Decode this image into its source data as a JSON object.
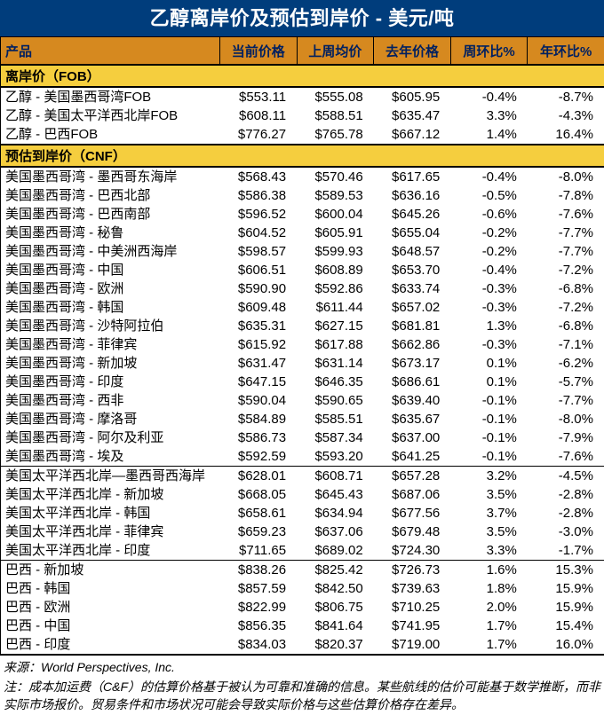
{
  "title": "乙醇离岸价及预估到岸价 - 美元/吨",
  "colors": {
    "navy_header": "#003D7C",
    "orange_column_header": "#D6891F",
    "yellow_section": "#F5CE3E",
    "column_header_text": "#002060"
  },
  "table": {
    "columns": [
      "产品",
      "当前价格",
      "上周均价",
      "去年价格",
      "周环比%",
      "年环比%"
    ],
    "sections": [
      {
        "label": "离岸价（FOB）",
        "groups": [
          {
            "rows": [
              [
                "乙醇 - 美国墨西哥湾FOB",
                "$553.11",
                "$555.08",
                "$605.95",
                "-0.4%",
                "-8.7%"
              ],
              [
                "乙醇 - 美国太平洋西北岸FOB",
                "$608.11",
                "$588.51",
                "$635.47",
                "3.3%",
                "-4.3%"
              ],
              [
                "乙醇 - 巴西FOB",
                "$776.27",
                "$765.78",
                "$667.12",
                "1.4%",
                "16.4%"
              ]
            ]
          }
        ]
      },
      {
        "label": "预估到岸价（CNF）",
        "groups": [
          {
            "rows": [
              [
                "美国墨西哥湾 - 墨西哥东海岸",
                "$568.43",
                "$570.46",
                "$617.65",
                "-0.4%",
                "-8.0%"
              ],
              [
                "美国墨西哥湾 - 巴西北部",
                "$586.38",
                "$589.53",
                "$636.16",
                "-0.5%",
                "-7.8%"
              ],
              [
                "美国墨西哥湾 - 巴西南部",
                "$596.52",
                "$600.04",
                "$645.26",
                "-0.6%",
                "-7.6%"
              ],
              [
                "美国墨西哥湾 - 秘鲁",
                "$604.52",
                "$605.91",
                "$655.04",
                "-0.2%",
                "-7.7%"
              ],
              [
                "美国墨西哥湾 - 中美洲西海岸",
                "$598.57",
                "$599.93",
                "$648.57",
                "-0.2%",
                "-7.7%"
              ],
              [
                "美国墨西哥湾 - 中国",
                "$606.51",
                "$608.89",
                "$653.70",
                "-0.4%",
                "-7.2%"
              ],
              [
                "美国墨西哥湾 - 欧洲",
                "$590.90",
                "$592.86",
                "$633.74",
                "-0.3%",
                "-6.8%"
              ],
              [
                "美国墨西哥湾 - 韩国",
                "$609.48",
                "$611.44",
                "$657.02",
                "-0.3%",
                "-7.2%"
              ],
              [
                "美国墨西哥湾 - 沙特阿拉伯",
                "$635.31",
                "$627.15",
                "$681.81",
                "1.3%",
                "-6.8%"
              ],
              [
                "美国墨西哥湾 - 菲律宾",
                "$615.92",
                "$617.88",
                "$662.86",
                "-0.3%",
                "-7.1%"
              ],
              [
                "美国墨西哥湾 - 新加坡",
                "$631.47",
                "$631.14",
                "$673.17",
                "0.1%",
                "-6.2%"
              ],
              [
                "美国墨西哥湾 - 印度",
                "$647.15",
                "$646.35",
                "$686.61",
                "0.1%",
                "-5.7%"
              ],
              [
                "美国墨西哥湾 - 西非",
                "$590.04",
                "$590.65",
                "$639.40",
                "-0.1%",
                "-7.7%"
              ],
              [
                "美国墨西哥湾 - 摩洛哥",
                "$584.89",
                "$585.51",
                "$635.67",
                "-0.1%",
                "-8.0%"
              ],
              [
                "美国墨西哥湾 - 阿尔及利亚",
                "$586.73",
                "$587.34",
                "$637.00",
                "-0.1%",
                "-7.9%"
              ],
              [
                "美国墨西哥湾 - 埃及",
                "$592.59",
                "$593.20",
                "$641.25",
                "-0.1%",
                "-7.6%"
              ]
            ]
          },
          {
            "rows": [
              [
                "美国太平洋西北岸—墨西哥西海岸",
                "$628.01",
                "$608.71",
                "$657.28",
                "3.2%",
                "-4.5%"
              ],
              [
                "美国太平洋西北岸 - 新加坡",
                "$668.05",
                "$645.43",
                "$687.06",
                "3.5%",
                "-2.8%"
              ],
              [
                "美国太平洋西北岸 - 韩国",
                "$658.61",
                "$634.94",
                "$677.56",
                "3.7%",
                "-2.8%"
              ],
              [
                "美国太平洋西北岸 - 菲律宾",
                "$659.23",
                "$637.06",
                "$679.48",
                "3.5%",
                "-3.0%"
              ],
              [
                "美国太平洋西北岸 - 印度",
                "$711.65",
                "$689.02",
                "$724.30",
                "3.3%",
                "-1.7%"
              ]
            ]
          },
          {
            "rows": [
              [
                "巴西 - 新加坡",
                "$838.26",
                "$825.42",
                "$726.73",
                "1.6%",
                "15.3%"
              ],
              [
                "巴西 - 韩国",
                "$857.59",
                "$842.50",
                "$739.63",
                "1.8%",
                "15.9%"
              ],
              [
                "巴西 - 欧洲",
                "$822.99",
                "$806.75",
                "$710.25",
                "2.0%",
                "15.9%"
              ],
              [
                "巴西 - 中国",
                "$856.35",
                "$841.64",
                "$741.95",
                "1.7%",
                "15.4%"
              ],
              [
                "巴西 - 印度",
                "$834.03",
                "$820.37",
                "$719.00",
                "1.7%",
                "16.0%"
              ]
            ]
          }
        ]
      }
    ]
  },
  "footer": {
    "source": "来源：World Perspectives, Inc.",
    "note": "注：成本加运费（C&F）的估算价格基于被认为可靠和准确的信息。某些航线的估价可能基于数学推断，而非实际市场报价。贸易条件和市场状况可能会导致实际价格与这些估算价格存在差异。"
  }
}
